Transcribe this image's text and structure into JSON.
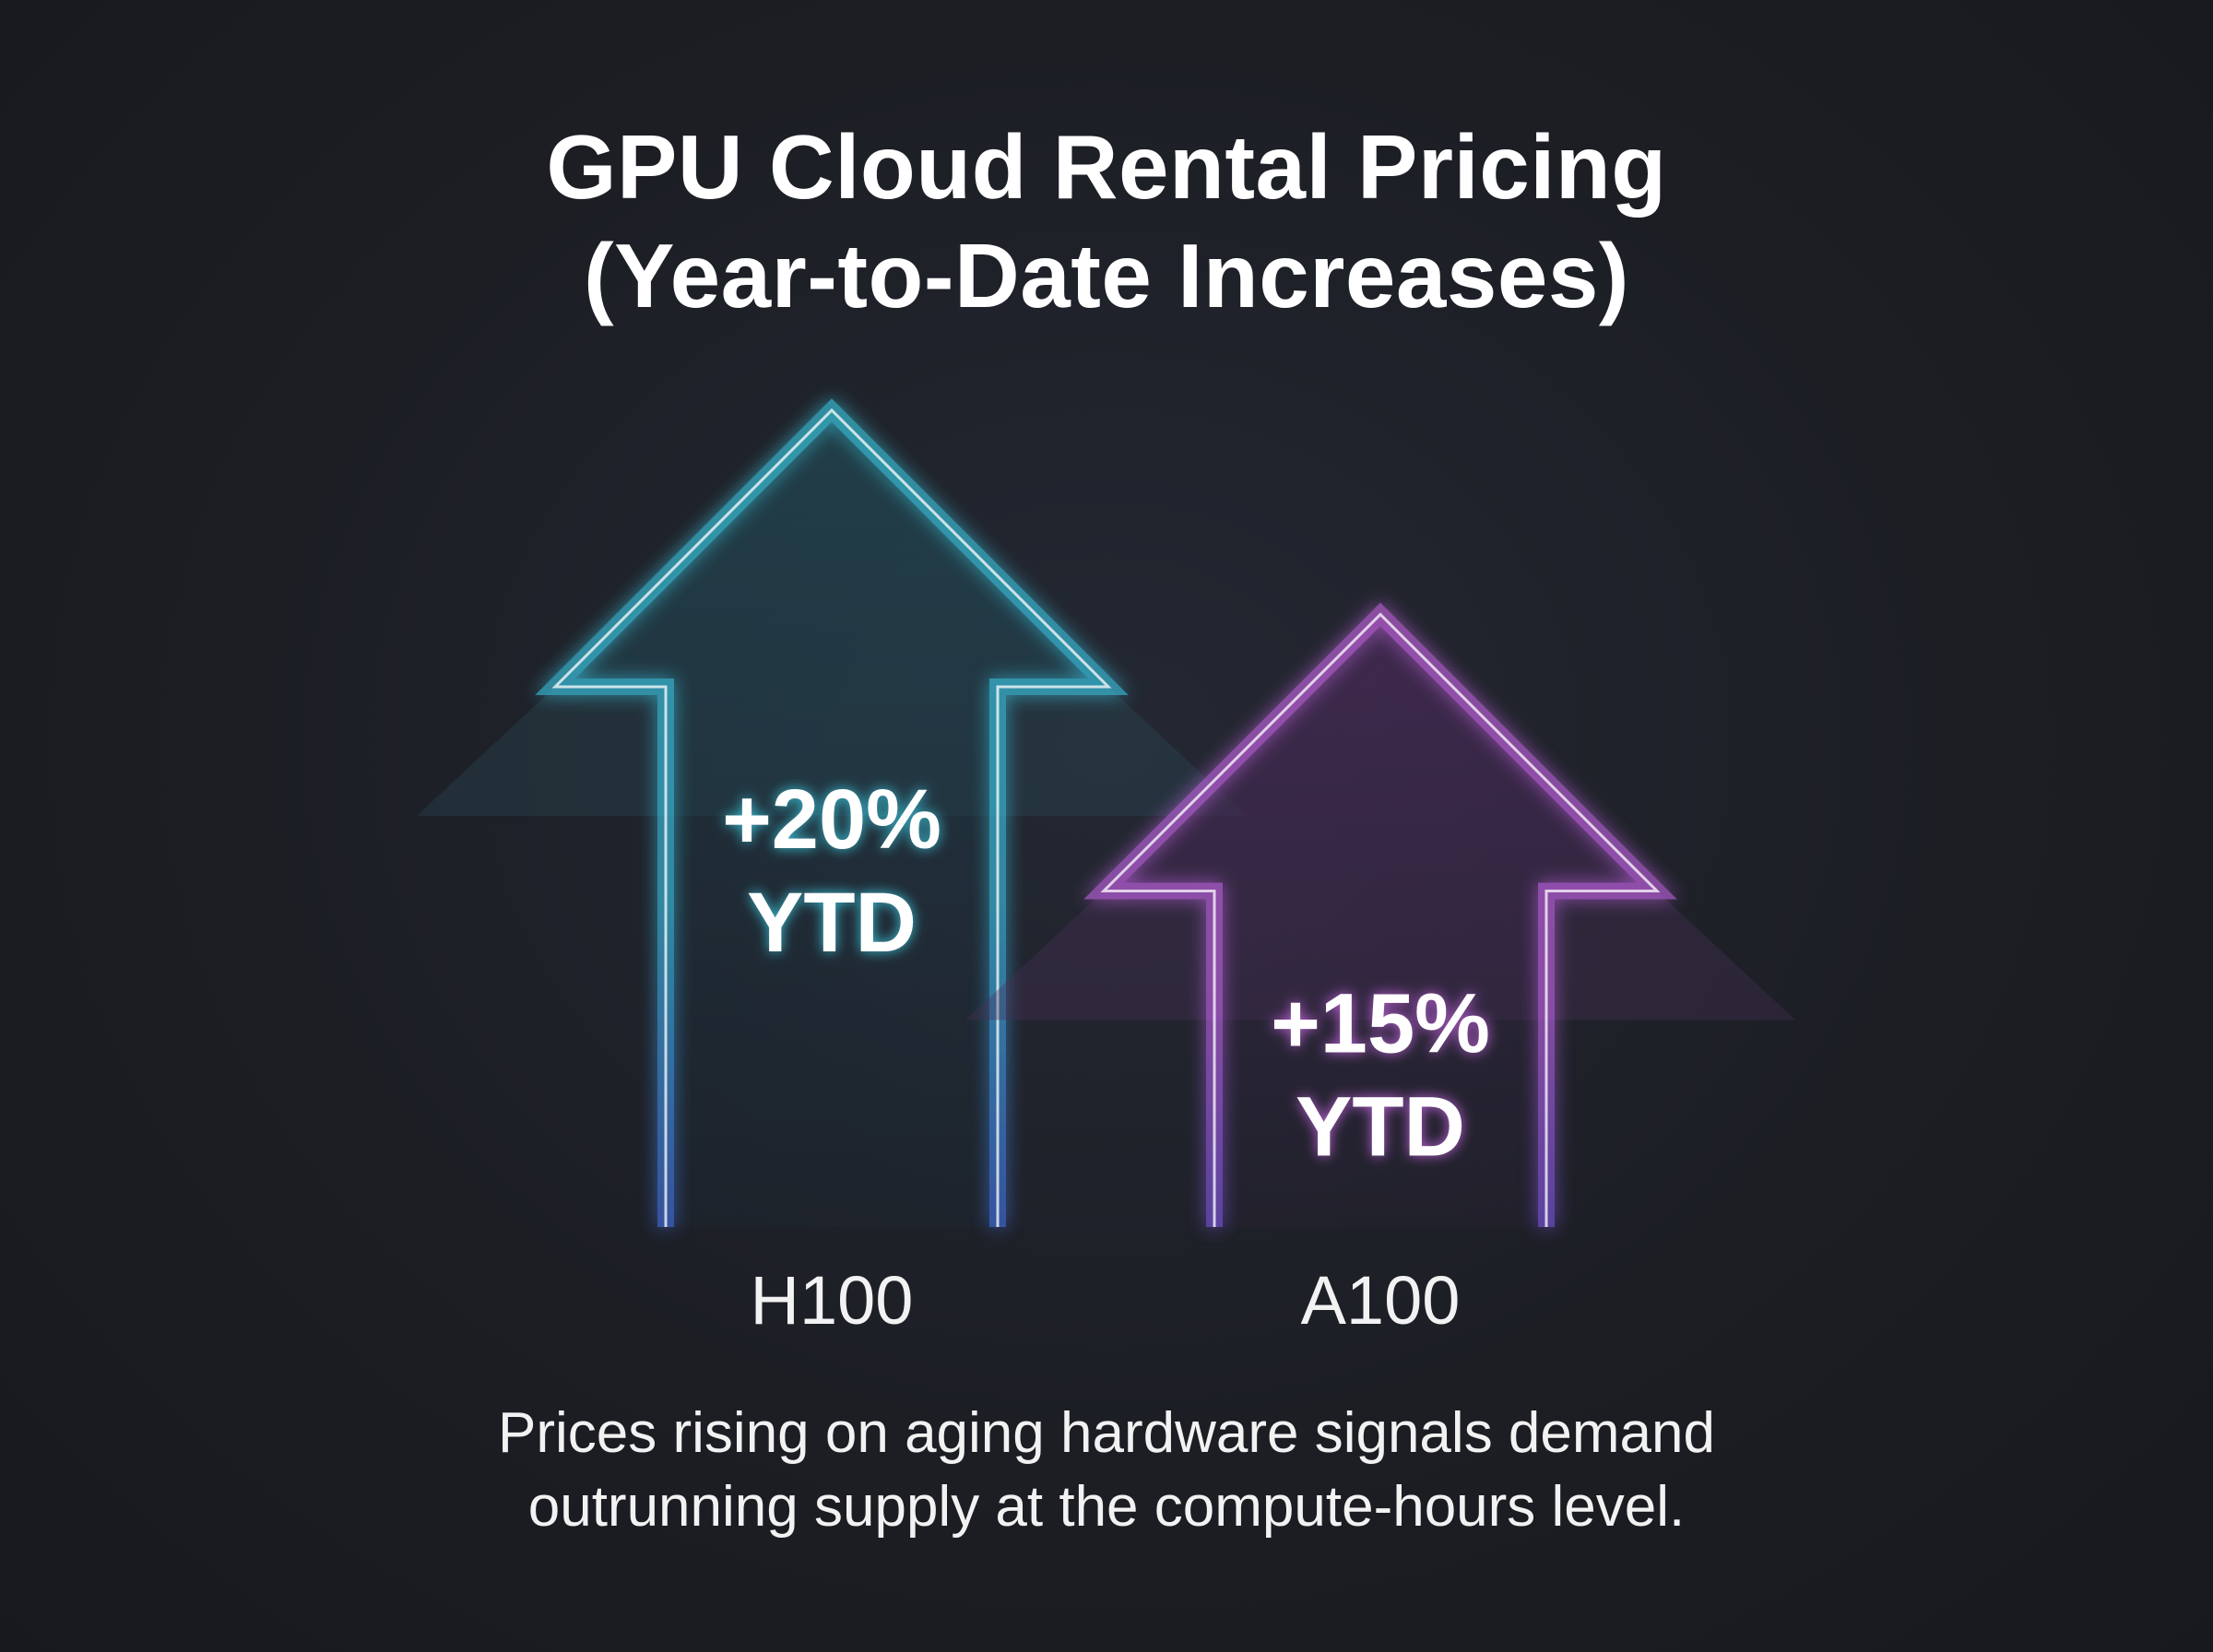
{
  "title_lines": [
    "GPU Cloud Rental Pricing",
    "(Year-to-Date Increases)"
  ],
  "caption_lines": [
    "Prices rising on aging hardware signals demand",
    "outrunning supply at the compute-hours level."
  ],
  "chart_data": {
    "type": "bar",
    "categories": [
      "H100",
      "A100"
    ],
    "values": [
      20,
      15
    ],
    "unit": "%",
    "data_labels": [
      [
        "+20%",
        "YTD"
      ],
      [
        "+15%",
        "YTD"
      ]
    ],
    "title": "GPU Cloud Rental Pricing (Year-to-Date Increases)",
    "xlabel": "",
    "ylabel": "",
    "grid": false,
    "legend": "none"
  },
  "colors": {
    "background": "#1c1e24",
    "h100": "#3fe6ff",
    "h100_base": "#4a7cff",
    "a100": "#e070ff",
    "a100_base": "#8a60ff",
    "text": "#ffffff"
  }
}
